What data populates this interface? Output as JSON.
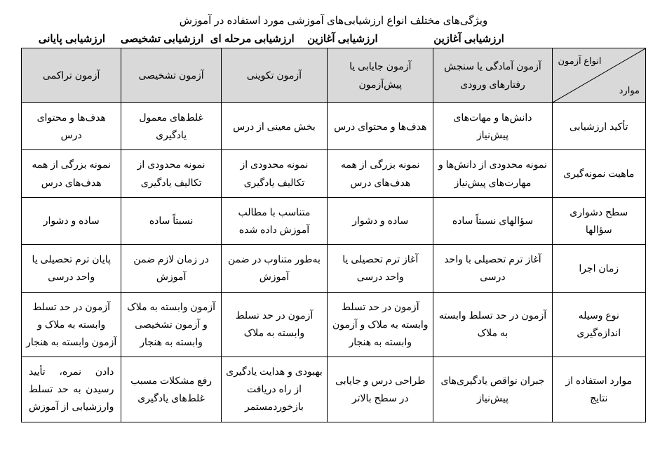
{
  "title": "ویژگی‌های مختلف انواع ارزشیابی‌های آموزشی مورد استفاده در آموزش",
  "categories": {
    "c1": "ارزشیابی آغازین",
    "c2": "ارزشیابی آغازین",
    "c3": "ارزشیابی مرحله ای",
    "c4": "ارزشیابی تشخیصی",
    "c5": "ارزشیابی پایانی"
  },
  "diagHeader": {
    "top": "انواع آزمون",
    "bottom": "موارد"
  },
  "colHeaders": {
    "h1": "آزمون آمادگی یا سنجش رفتارهای ورودی",
    "h2": "آزمون جایابی یا پیش‌آزمون",
    "h3": "آزمون تکوینی",
    "h4": "آزمون تشخیصی",
    "h5": "آزمون تراکمی"
  },
  "rows": [
    {
      "label": "تأکید ارزشیابی",
      "c1": "دانش‌ها و مهات‌های پیش‌نیاز",
      "c2": "هدف‌ها و محتوای درس",
      "c3": "بخش معینی از درس",
      "c4": "غلط‌های معمول یادگیری",
      "c5": "هدف‌ها و محتوای درس"
    },
    {
      "label": "ماهیت نمونه‌گیری",
      "c1": "نمونه محدودی از دانش‌ها و مهارت‌های پیش‌نیاز",
      "c2": "نمونه بزرگی از همه هدف‌های درس",
      "c3": "نمونه محدودی از تکالیف یادگیری",
      "c4": "نمونه محدودی از تکالیف یادگیری",
      "c5": "نمونه بزرگی از همه هدف‌های درس"
    },
    {
      "label": "سطح دشواری سؤالها",
      "c1": "سؤالهای نسبتاً ساده",
      "c2": "ساده و دشوار",
      "c3": "متناسب با مطالب آموزش داده شده",
      "c4": "نسبتاً ساده",
      "c5": "ساده و دشوار"
    },
    {
      "label": "زمان اجرا",
      "c1": "آغاز ترم تحصیلی با واحد درسی",
      "c2": "آغاز ترم تحصیلی یا واحد درسی",
      "c3": "به‌طور متناوب در ضمن آموزش",
      "c4": "در زمان لازم ضمن آموزش",
      "c5": "پایان ترم تحصیلی یا واحد درسی"
    },
    {
      "label": "نوع وسیله اندازه‌گیری",
      "c1": "آزمون در حد تسلط وابسته به ملاک",
      "c2": "آزمون در حد تسلط وابسته به ملاک و آزمون وابسته به هنجار",
      "c3": "آزمون در حد تسلط وابسته به ملاک",
      "c4": "آزمون وابسته به ملاک و آزمون تشخیصی وابسته به هنجار",
      "c5": "آزمون در حد تسلط وابسته به ملاک و آزمون وابسته به هنجار"
    },
    {
      "label": "موارد استفاده از نتایج",
      "c1": "جبران نواقص یادگیری‌های پیش‌نیاز",
      "c2": "طراحی درس و جایابی در سطح بالاتر",
      "c3": "بهبودی و هدایت یادگیری از راه دریافت بازخوردمستمر",
      "c4": "رفع مشکلات مسبب غلط‌های یادگیری",
      "c5": "دادن نمره، تأیید رسیدن به حد تسلط وارزشیابی از آموزش",
      "c5_justify": true
    }
  ]
}
